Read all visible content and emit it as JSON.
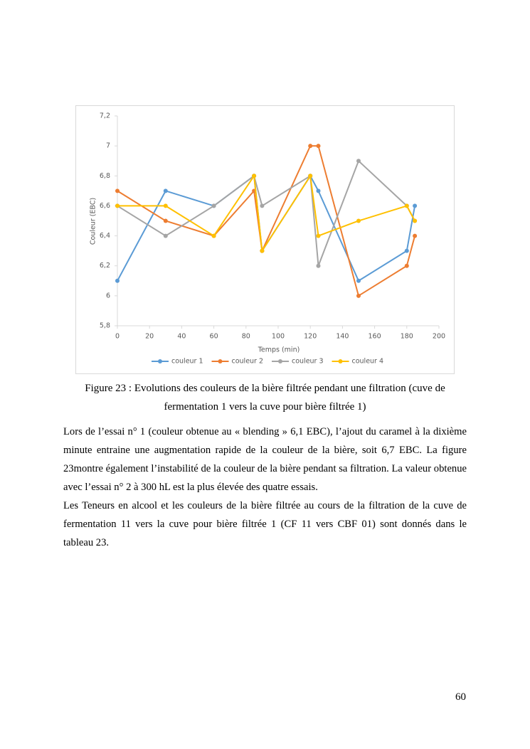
{
  "chart_data": {
    "type": "line",
    "x_label": "Temps  (min)",
    "y_label": "Couleur (EBC)",
    "x": [
      0,
      30,
      60,
      85,
      90,
      120,
      125,
      150,
      180,
      185
    ],
    "series": [
      {
        "name": "couleur 1",
        "color": "#5b9bd5",
        "values": [
          6.1,
          6.7,
          6.6,
          6.8,
          6.3,
          6.8,
          6.7,
          6.1,
          6.3,
          6.6
        ]
      },
      {
        "name": "couleur 2",
        "color": "#ed7d31",
        "values": [
          6.7,
          6.5,
          6.4,
          6.7,
          6.3,
          7.0,
          7.0,
          6.0,
          6.2,
          6.4
        ]
      },
      {
        "name": "couleur 3",
        "color": "#a5a5a5",
        "values": [
          6.6,
          6.4,
          6.6,
          6.8,
          6.6,
          6.8,
          6.2,
          6.9,
          6.6,
          6.5
        ]
      },
      {
        "name": "couleur 4",
        "color": "#ffc000",
        "values": [
          6.6,
          6.6,
          6.4,
          6.8,
          6.3,
          6.8,
          6.4,
          6.5,
          6.6,
          6.5
        ]
      }
    ],
    "xlim": [
      0,
      200
    ],
    "xticks": [
      0,
      20,
      40,
      60,
      80,
      100,
      120,
      140,
      160,
      180,
      200
    ],
    "ylim": [
      5.8,
      7.2
    ],
    "yticks": [
      {
        "value": 5.8,
        "label": "5,8"
      },
      6,
      {
        "value": 6.2,
        "label": "6,2"
      },
      {
        "value": 6.4,
        "label": "6,4"
      },
      {
        "value": 6.6,
        "label": "6,6"
      },
      {
        "value": 6.8,
        "label": "6,8"
      },
      7,
      {
        "value": 7.2,
        "label": "7,2"
      }
    ],
    "grid": false,
    "legend": "bottom"
  },
  "caption": "Figure 23 : Evolutions des couleurs de la bière filtrée pendant une filtration (cuve de fermentation 1 vers la cuve pour bière filtrée 1)",
  "paragraphs": [
    "Lors de l’essai n° 1 (couleur obtenue au « blending » 6,1 EBC), l’ajout du caramel à la dixième minute entraine une augmentation rapide de la couleur de la bière, soit 6,7 EBC. La figure 23montre également l’instabilité de la couleur de la bière pendant sa filtration. La valeur obtenue avec l’essai n° 2 à 300 hL est la plus élevée des quatre essais.",
    "Les Teneurs en alcool et les couleurs de la bière filtrée au cours de la filtration de la cuve de fermentation 11 vers la cuve pour bière filtrée 1 (CF 11 vers CBF 01) sont donnés dans le tableau 23."
  ],
  "page_number": "60"
}
